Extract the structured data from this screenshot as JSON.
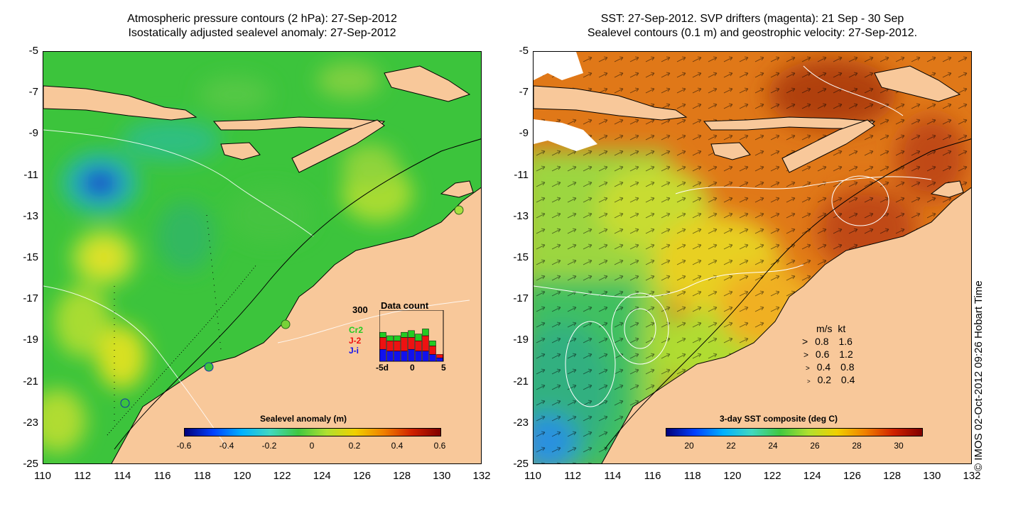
{
  "left_panel": {
    "title_line1": "Atmospheric pressure contours (2 hPa): 27-Sep-2012",
    "title_line2": "Isostatically adjusted sealevel anomaly: 27-Sep-2012",
    "colorbar_label": "Sealevel anomaly (m)",
    "colorbar_ticks": [
      "-0.6",
      "-0.4",
      "-0.2",
      "0",
      "0.2",
      "0.4",
      "0.6"
    ],
    "inset": {
      "title": "Data count",
      "ymax_label": "300",
      "legend": [
        {
          "name": "Cr2",
          "color": "#22cc22"
        },
        {
          "name": "J-2",
          "color": "#ee1111"
        },
        {
          "name": "J-i",
          "color": "#1111ee"
        }
      ],
      "xticks": [
        "-5d",
        "0",
        "5"
      ]
    }
  },
  "right_panel": {
    "title_line1": "SST: 27-Sep-2012. SVP drifters (magenta): 21 Sep - 30 Sep",
    "title_line2": "Sealevel contours (0.1 m) and geostrophic velocity: 27-Sep-2012.",
    "colorbar_label": "3-day SST composite (deg C)",
    "colorbar_ticks": [
      "20",
      "22",
      "24",
      "26",
      "28",
      "30"
    ],
    "velocity_legend": {
      "header": "m/s  kt",
      "rows": [
        {
          "ms": "0.8",
          "kt": "1.6"
        },
        {
          "ms": "0.6",
          "kt": "1.2"
        },
        {
          "ms": "0.4",
          "kt": "0.8"
        },
        {
          "ms": "0.2",
          "kt": "0.4"
        }
      ]
    }
  },
  "axes": {
    "y_ticks": [
      "-5",
      "-7",
      "-9",
      "-11",
      "-13",
      "-15",
      "-17",
      "-19",
      "-21",
      "-23",
      "-25"
    ],
    "x_ticks": [
      "110",
      "112",
      "114",
      "116",
      "118",
      "120",
      "122",
      "124",
      "126",
      "128",
      "130",
      "132"
    ]
  },
  "credit": "© IMOS 02-Oct-2012 09:26 Hobart Time",
  "colors": {
    "land": "#f8c89a",
    "ocean_left": "#3cc43c",
    "ocean_right": "#e07818"
  },
  "chart_data": [
    {
      "type": "bar",
      "title": "Data count",
      "ylim": [
        0,
        300
      ],
      "categories": [
        "-4",
        "-3",
        "-2",
        "-1",
        "0",
        "1",
        "2",
        "3",
        "4"
      ],
      "series": [
        {
          "name": "J-i",
          "values": [
            70,
            60,
            60,
            60,
            70,
            60,
            60,
            40,
            20
          ]
        },
        {
          "name": "J-2",
          "values": [
            70,
            60,
            60,
            80,
            70,
            60,
            90,
            50,
            20
          ]
        },
        {
          "name": "Cr2",
          "values": [
            30,
            30,
            30,
            30,
            40,
            40,
            40,
            30,
            0
          ]
        }
      ]
    }
  ]
}
